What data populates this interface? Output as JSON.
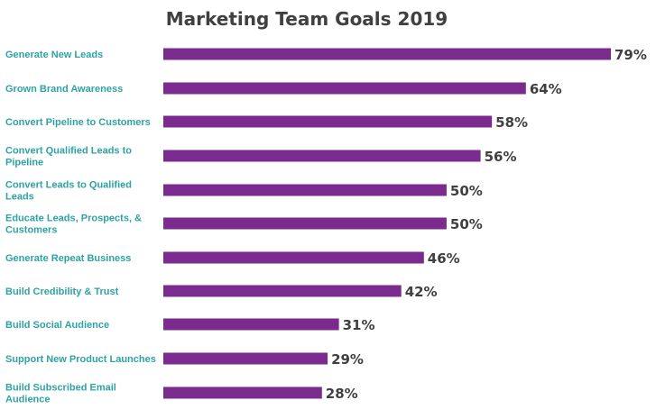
{
  "chart_data": {
    "type": "bar",
    "orientation": "horizontal",
    "title": "Marketing Team Goals 2019",
    "categories": [
      "Generate New Leads",
      "Grown Brand Awareness",
      "Convert Pipeline to Customers",
      "Convert Qualified Leads to Pipeline",
      "Convert Leads to Qualified Leads",
      "Educate Leads, Prospects, & Customers",
      "Generate Repeat Business",
      "Build Credibility & Trust",
      "Build Social Audience",
      "Support New Product Launches",
      "Build Subscribed Email Audience"
    ],
    "values": [
      79,
      64,
      58,
      56,
      50,
      50,
      46,
      42,
      31,
      29,
      28
    ],
    "value_labels": [
      "79%",
      "64%",
      "58%",
      "56%",
      "50%",
      "50%",
      "46%",
      "42%",
      "31%",
      "29%",
      "28%"
    ],
    "value_unit": "%",
    "xlim": [
      0,
      79
    ],
    "grid": false,
    "legend": "none",
    "colors": {
      "bar": "#7b2a8e",
      "category_label": "#2fa3a3",
      "value_label": "#404040",
      "title": "#404040"
    }
  }
}
